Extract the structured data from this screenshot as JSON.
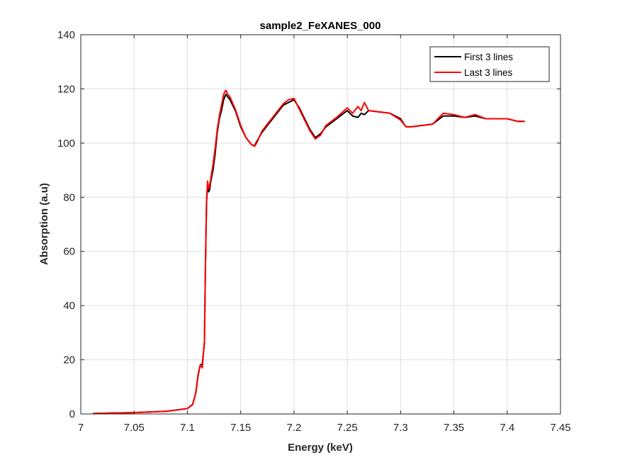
{
  "chart_data": {
    "type": "line",
    "title": "sample2_FeXANES_000",
    "xlabel": "Energy (keV)",
    "ylabel": "Absorption (a.u)",
    "xlim": [
      7.0,
      7.45
    ],
    "ylim": [
      0,
      140
    ],
    "xticks": [
      "7",
      "7.05",
      "7.1",
      "7.15",
      "7.2",
      "7.25",
      "7.3",
      "7.35",
      "7.4",
      "7.45"
    ],
    "yticks": [
      "0",
      "20",
      "40",
      "60",
      "80",
      "100",
      "120",
      "140"
    ],
    "grid": true,
    "legend_position": "top-right",
    "series": [
      {
        "name": "First 3 lines",
        "color": "#000000",
        "x": [
          7.012,
          7.05,
          7.08,
          7.1,
          7.105,
          7.108,
          7.11,
          7.112,
          7.114,
          7.116,
          7.117,
          7.118,
          7.119,
          7.12,
          7.121,
          7.122,
          7.124,
          7.126,
          7.128,
          7.13,
          7.132,
          7.134,
          7.136,
          7.138,
          7.14,
          7.145,
          7.15,
          7.155,
          7.16,
          7.163,
          7.165,
          7.17,
          7.18,
          7.19,
          7.195,
          7.2,
          7.205,
          7.21,
          7.215,
          7.22,
          7.225,
          7.23,
          7.24,
          7.25,
          7.255,
          7.26,
          7.263,
          7.266,
          7.27,
          7.28,
          7.29,
          7.3,
          7.305,
          7.31,
          7.32,
          7.33,
          7.34,
          7.35,
          7.36,
          7.37,
          7.38,
          7.39,
          7.4,
          7.41,
          7.416
        ],
        "y": [
          0.2,
          0.5,
          1.0,
          2.0,
          3.5,
          8.0,
          14.0,
          18.0,
          18.5,
          26.0,
          55.0,
          78.0,
          85.0,
          82.0,
          83.0,
          86.0,
          90.0,
          96.0,
          104.0,
          109.0,
          112.0,
          116.0,
          118.0,
          117.0,
          116.0,
          112.0,
          106.0,
          102.0,
          99.5,
          99.0,
          100.5,
          104.0,
          109.0,
          114.0,
          115.0,
          116.0,
          113.0,
          109.0,
          105.0,
          102.0,
          103.5,
          106.0,
          109.0,
          112.0,
          110.0,
          109.5,
          111.0,
          110.5,
          112.0,
          111.5,
          111.0,
          109.0,
          106.0,
          106.0,
          106.5,
          107.0,
          110.0,
          110.0,
          109.5,
          110.0,
          109.0,
          109.0,
          109.0,
          108.0,
          108.0
        ]
      },
      {
        "name": "Last 3 lines",
        "color": "#ff0000",
        "x": [
          7.012,
          7.05,
          7.08,
          7.1,
          7.105,
          7.108,
          7.11,
          7.112,
          7.114,
          7.116,
          7.117,
          7.118,
          7.119,
          7.12,
          7.121,
          7.122,
          7.124,
          7.126,
          7.128,
          7.13,
          7.132,
          7.134,
          7.136,
          7.138,
          7.14,
          7.145,
          7.15,
          7.155,
          7.16,
          7.163,
          7.165,
          7.17,
          7.18,
          7.19,
          7.195,
          7.2,
          7.205,
          7.21,
          7.215,
          7.22,
          7.225,
          7.23,
          7.24,
          7.25,
          7.255,
          7.26,
          7.263,
          7.266,
          7.27,
          7.28,
          7.29,
          7.3,
          7.305,
          7.31,
          7.32,
          7.33,
          7.34,
          7.35,
          7.36,
          7.37,
          7.38,
          7.39,
          7.4,
          7.41,
          7.416
        ],
        "y": [
          0.2,
          0.5,
          1.0,
          2.0,
          3.6,
          8.2,
          14.5,
          18.0,
          17.0,
          27.0,
          56.0,
          79.0,
          86.0,
          83.0,
          84.5,
          87.0,
          92.0,
          98.0,
          105.0,
          110.0,
          114.0,
          118.0,
          119.5,
          118.0,
          117.0,
          112.5,
          106.5,
          102.0,
          99.5,
          98.8,
          100.0,
          104.5,
          109.5,
          114.5,
          116.0,
          116.5,
          112.5,
          108.5,
          104.5,
          101.5,
          103.0,
          106.5,
          109.5,
          113.0,
          111.0,
          113.5,
          112.0,
          115.0,
          112.0,
          111.5,
          111.0,
          108.5,
          106.0,
          106.0,
          106.5,
          107.0,
          111.0,
          110.5,
          109.5,
          110.5,
          109.0,
          109.0,
          109.0,
          108.0,
          108.0
        ]
      }
    ]
  }
}
